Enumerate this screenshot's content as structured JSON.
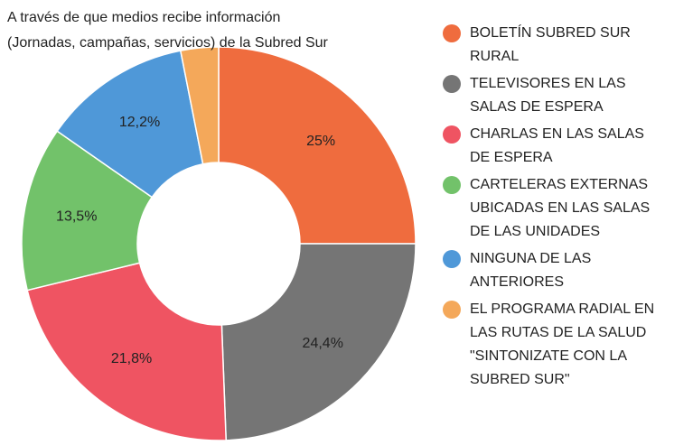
{
  "chart_data": {
    "type": "donut",
    "title": "A través de que medios recibe información (Jornadas, campañas, servicios) de la Subred Sur",
    "categories": [
      "BOLETÍN SUBRED SUR RURAL",
      "TELEVISORES EN LAS SALAS DE ESPERA",
      "CHARLAS EN LAS SALAS DE ESPERA",
      "CARTELERAS EXTERNAS UBICADAS EN LAS SALAS DE LAS UNIDADES",
      "NINGUNA DE LAS ANTERIORES",
      "EL PROGRAMA RADIAL EN LAS RUTAS DE LA SALUD \"SINTONIZATE CON LA SUBRED SUR\""
    ],
    "values": [
      25,
      24.4,
      21.8,
      13.5,
      12.2,
      3.1
    ],
    "value_labels": [
      "25%",
      "24,4%",
      "21,8%",
      "13,5%",
      "12,2%",
      null
    ],
    "colors": [
      "#ef6c3e",
      "#757575",
      "#ef5462",
      "#72c26a",
      "#4f98d8",
      "#f4a85a"
    ],
    "legend": "right"
  }
}
